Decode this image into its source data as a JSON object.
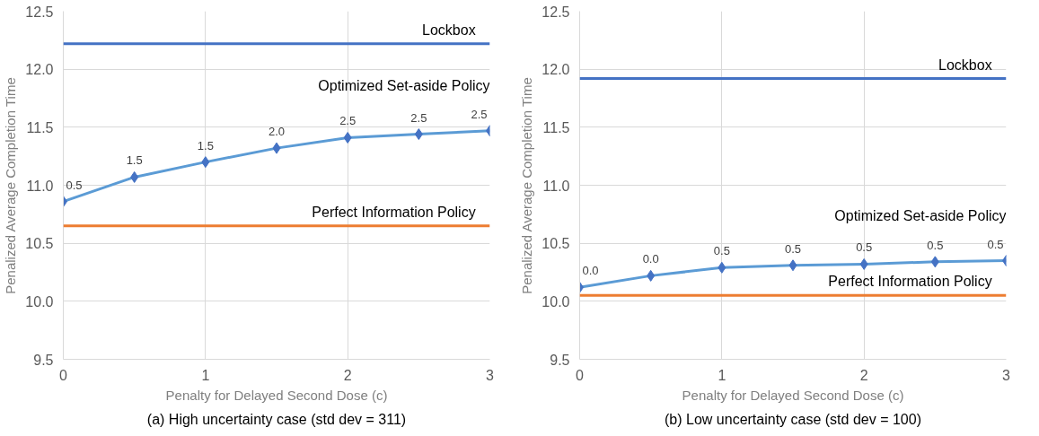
{
  "chart_data": [
    {
      "type": "line",
      "xlabel": "Penalty for Delayed Second Dose (c)",
      "ylabel": "Penalized Average Completion Time",
      "x": [
        0,
        0.5,
        1,
        1.5,
        2,
        2.5,
        3
      ],
      "xlim": [
        0,
        3
      ],
      "xticks": [
        0,
        1,
        2,
        3
      ],
      "ylim": [
        9.5,
        12.5
      ],
      "yticks": [
        {
          "value": 9.5,
          "label": "9.5"
        },
        {
          "value": 10,
          "label": "10.0"
        },
        {
          "value": 10.5,
          "label": "10.5"
        },
        {
          "value": 11,
          "label": "11.0"
        },
        {
          "value": 11.5,
          "label": "11.5"
        },
        {
          "value": 12,
          "label": "12.0"
        },
        {
          "value": 12.5,
          "label": "12.5"
        }
      ],
      "grid": true,
      "marker": "diamond",
      "line_style": "solid",
      "series": [
        {
          "name": "Optimized Set-aside Policy",
          "color": "#5b9bd5",
          "values": [
            10.86,
            11.07,
            11.2,
            11.32,
            11.41,
            11.44,
            11.47
          ]
        }
      ],
      "ref_lines": [
        {
          "axis": "y",
          "value": 12.22,
          "label": "Lockbox",
          "color": "#4472c4"
        },
        {
          "axis": "y",
          "value": 10.65,
          "label": "Perfect Information Policy",
          "color": "#ed7d31"
        }
      ],
      "annotations": [
        "(a) High uncertainty case (std dev = 311)",
        {
          "text": "0.5",
          "x": 0,
          "y": 10.86
        },
        {
          "text": "1.5",
          "x": 0.5,
          "y": 11.07
        },
        {
          "text": "1.5",
          "x": 1,
          "y": 11.2
        },
        {
          "text": "2.0",
          "x": 1.5,
          "y": 11.32
        },
        {
          "text": "2.5",
          "x": 2,
          "y": 11.41
        },
        {
          "text": "2.5",
          "x": 2.5,
          "y": 11.44
        },
        {
          "text": "2.5",
          "x": 3,
          "y": 11.47
        }
      ]
    },
    {
      "type": "line",
      "xlabel": "Penalty for Delayed Second Dose (c)",
      "ylabel": "Penalized Average Completion Time",
      "x": [
        0,
        0.5,
        1,
        1.5,
        2,
        2.5,
        3
      ],
      "xlim": [
        0,
        3
      ],
      "xticks": [
        0,
        1,
        2,
        3
      ],
      "ylim": [
        9.5,
        12.5
      ],
      "yticks": [
        {
          "value": 9.5,
          "label": "9.5"
        },
        {
          "value": 10,
          "label": "10.0"
        },
        {
          "value": 10.5,
          "label": "10.5"
        },
        {
          "value": 11,
          "label": "11.0"
        },
        {
          "value": 11.5,
          "label": "11.5"
        },
        {
          "value": 12,
          "label": "12.0"
        },
        {
          "value": 12.5,
          "label": "12.5"
        }
      ],
      "grid": true,
      "marker": "diamond",
      "line_style": "solid",
      "series": [
        {
          "name": "Optimized Set-aside Policy",
          "color": "#5b9bd5",
          "values": [
            10.12,
            10.22,
            10.29,
            10.31,
            10.32,
            10.34,
            10.35
          ]
        }
      ],
      "ref_lines": [
        {
          "axis": "y",
          "value": 11.92,
          "label": "Lockbox",
          "color": "#4472c4"
        },
        {
          "axis": "y",
          "value": 10.05,
          "label": "Perfect Information Policy",
          "color": "#ed7d31"
        }
      ],
      "annotations": [
        "(b) Low uncertainty case (std dev = 100)",
        {
          "text": "0.0",
          "x": 0,
          "y": 10.12
        },
        {
          "text": "0.0",
          "x": 0.5,
          "y": 10.22
        },
        {
          "text": "0.5",
          "x": 1,
          "y": 10.29
        },
        {
          "text": "0.5",
          "x": 1.5,
          "y": 10.31
        },
        {
          "text": "0.5",
          "x": 2,
          "y": 10.32
        },
        {
          "text": "0.5",
          "x": 2.5,
          "y": 10.34
        },
        {
          "text": "0.5",
          "x": 3,
          "y": 10.35
        }
      ]
    }
  ]
}
